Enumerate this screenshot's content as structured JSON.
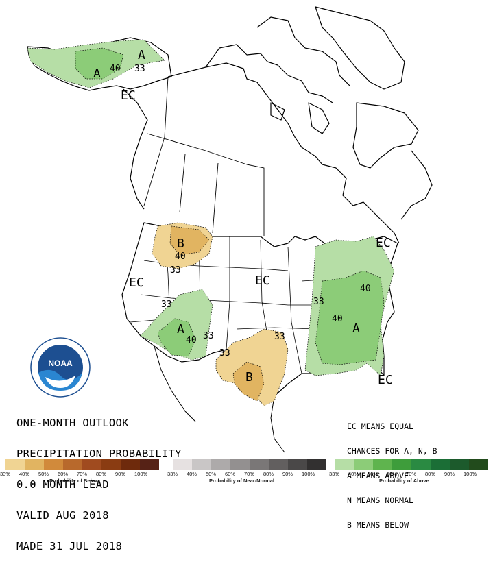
{
  "title_lines": [
    "ONE-MONTH OUTLOOK",
    "PRECIPITATION PROBABILITY",
    "0.0 MONTH LEAD",
    "VALID AUG 2018",
    "MADE 31 JUL 2018"
  ],
  "key_lines": [
    "EC MEANS EQUAL",
    "CHANCES FOR A, N, B",
    "A MEANS ABOVE",
    "N MEANS NORMAL",
    "B MEANS BELOW"
  ],
  "map_labels": {
    "ec": "EC",
    "above": "A",
    "below": "B",
    "c33": "33",
    "c40": "40"
  },
  "logo_text": "NOAA",
  "legend": {
    "below": {
      "caption": "Probability of Below",
      "colors": [
        "#f0d493",
        "#e1b461",
        "#d18a3b",
        "#b8692c",
        "#a04b1f",
        "#8a3c12",
        "#6e2a0c",
        "#562216"
      ],
      "ticks": [
        "33%",
        "40%",
        "50%",
        "60%",
        "70%",
        "80%",
        "90%",
        "100%"
      ]
    },
    "normal": {
      "caption": "Probability of Near-Normal",
      "colors": [
        "#e6e1e1",
        "#c9c6c6",
        "#adaaaa",
        "#939090",
        "#7a7777",
        "#625f5f",
        "#4a4848",
        "#323030"
      ],
      "ticks": [
        "33%",
        "40%",
        "50%",
        "60%",
        "70%",
        "80%",
        "90%",
        "100%"
      ]
    },
    "above": {
      "caption": "Probability of Above",
      "colors": [
        "#b6dea6",
        "#8ccc78",
        "#5fb44e",
        "#3e9d3b",
        "#2a8a42",
        "#1b6e36",
        "#1c5a2c",
        "#224b1c"
      ],
      "ticks": [
        "33%",
        "40%",
        "50%",
        "60%",
        "70%",
        "80%",
        "90%",
        "100%"
      ]
    }
  }
}
